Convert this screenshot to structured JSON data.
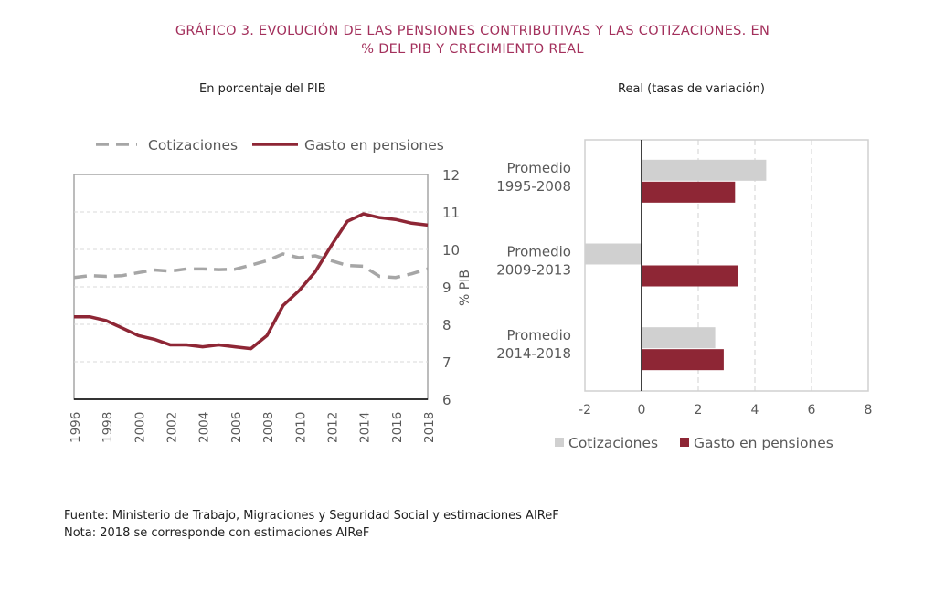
{
  "title": {
    "line1": "GRÁFICO 3.     EVOLUCIÓN DE LAS PENSIONES CONTRIBUTIVAS Y LAS COTIZACIONES. EN",
    "line2": "% DEL PIB Y CRECIMIENTO REAL"
  },
  "footer": {
    "source": "Fuente: Ministerio de Trabajo, Migraciones y Seguridad Social y estimaciones AIReF",
    "note": "Nota: 2018 se corresponde con estimaciones AIReF"
  },
  "colors": {
    "cotizaciones_line": "#a6a6a6",
    "cotizaciones_bar": "#d0d0d0",
    "gasto": "#8e2635",
    "title": "#a3305c"
  },
  "chart_data": [
    {
      "type": "line",
      "subtitle": "En porcentaje del  PIB",
      "ylabel": "% PIB",
      "ylim": [
        6,
        12
      ],
      "yticks": [
        6,
        7,
        8,
        9,
        10,
        11,
        12
      ],
      "grid": true,
      "legend": "top",
      "y_axis_side": "right",
      "x": [
        1996,
        1997,
        1998,
        1999,
        2000,
        2001,
        2002,
        2003,
        2004,
        2005,
        2006,
        2007,
        2008,
        2009,
        2010,
        2011,
        2012,
        2013,
        2014,
        2015,
        2016,
        2017,
        2018
      ],
      "xticks": [
        "1996",
        "1998",
        "2000",
        "2002",
        "2004",
        "2006",
        "2008",
        "2010",
        "2012",
        "2014",
        "2016",
        "2018"
      ],
      "series": [
        {
          "name": "Cotizaciones",
          "style": "dashed",
          "values": [
            9.25,
            9.3,
            9.28,
            9.3,
            9.38,
            9.45,
            9.42,
            9.48,
            9.48,
            9.46,
            9.47,
            9.58,
            9.7,
            9.88,
            9.78,
            9.83,
            9.7,
            9.57,
            9.55,
            9.28,
            9.25,
            9.35,
            9.48
          ]
        },
        {
          "name": "Gasto en pensiones",
          "style": "solid",
          "values": [
            8.2,
            8.2,
            8.1,
            7.9,
            7.7,
            7.6,
            7.45,
            7.45,
            7.4,
            7.45,
            7.4,
            7.35,
            7.7,
            8.5,
            8.9,
            9.4,
            10.1,
            10.75,
            10.95,
            10.85,
            10.8,
            10.7,
            10.65
          ]
        }
      ]
    },
    {
      "type": "bar",
      "orientation": "horizontal",
      "subtitle": "Real (tasas de variación)",
      "xlim": [
        -2,
        8
      ],
      "xticks": [
        -2,
        0,
        2,
        4,
        6,
        8
      ],
      "grid": true,
      "legend": "bottom",
      "categories": [
        [
          "Promedio",
          "1995-2008"
        ],
        [
          "Promedio",
          "2009-2013"
        ],
        [
          "Promedio",
          "2014-2018"
        ]
      ],
      "series": [
        {
          "name": "Cotizaciones",
          "values": [
            4.4,
            -2.0,
            2.6
          ]
        },
        {
          "name": "Gasto en pensiones",
          "values": [
            3.3,
            3.4,
            2.9
          ]
        }
      ]
    }
  ]
}
